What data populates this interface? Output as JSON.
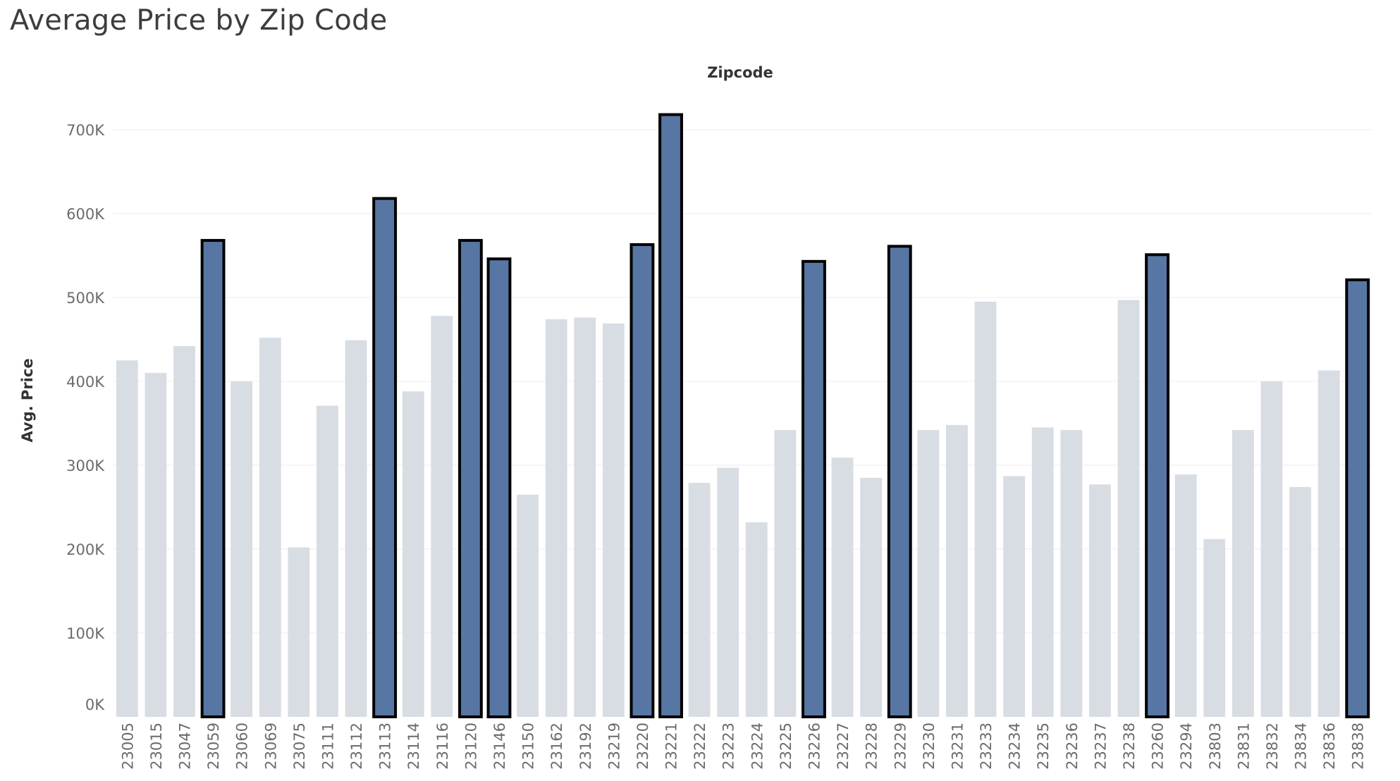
{
  "title": "Average Price by Zip Code",
  "chart_data": {
    "type": "bar",
    "title": "Average Price by Zip Code",
    "xlabel": "Zipcode",
    "ylabel": "Avg. Price",
    "ylim": [
      0,
      760000
    ],
    "yticks": [
      0,
      100000,
      200000,
      300000,
      400000,
      500000,
      600000,
      700000
    ],
    "ytick_labels": [
      "0K",
      "100K",
      "200K",
      "300K",
      "400K",
      "500K",
      "600K",
      "700K"
    ],
    "grid": true,
    "categories": [
      "23005",
      "23015",
      "23047",
      "23059",
      "23060",
      "23069",
      "23075",
      "23111",
      "23112",
      "23113",
      "23114",
      "23116",
      "23120",
      "23146",
      "23150",
      "23162",
      "23192",
      "23219",
      "23220",
      "23221",
      "23222",
      "23223",
      "23224",
      "23225",
      "23226",
      "23227",
      "23228",
      "23229",
      "23230",
      "23231",
      "23233",
      "23234",
      "23235",
      "23236",
      "23237",
      "23238",
      "23260",
      "23294",
      "23803",
      "23831",
      "23832",
      "23834",
      "23836",
      "23838"
    ],
    "values": [
      425000,
      410000,
      442000,
      568000,
      400000,
      452000,
      202000,
      371000,
      449000,
      618000,
      388000,
      478000,
      568000,
      546000,
      265000,
      474000,
      476000,
      469000,
      563000,
      718000,
      279000,
      297000,
      232000,
      342000,
      543000,
      309000,
      285000,
      561000,
      342000,
      348000,
      495000,
      287000,
      345000,
      342000,
      277000,
      497000,
      551000,
      289000,
      212000,
      342000,
      400000,
      274000,
      413000,
      521000
    ],
    "highlighted": [
      "23059",
      "23113",
      "23120",
      "23146",
      "23220",
      "23221",
      "23226",
      "23229",
      "23260",
      "23838"
    ],
    "colors": {
      "highlight": "#5776a3",
      "muted": "#d8dde4",
      "outline": "#000000"
    }
  }
}
